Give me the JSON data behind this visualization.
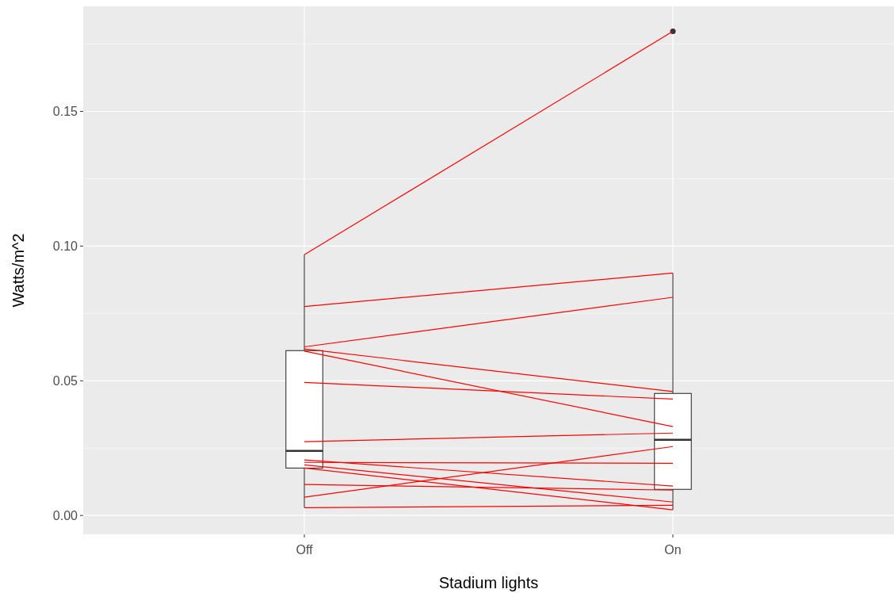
{
  "chart_data": {
    "type": "box",
    "xlabel": "Stadium lights",
    "ylabel": "Watts/m^2",
    "categories": [
      "Off",
      "On"
    ],
    "ylim": [
      -0.007,
      0.189
    ],
    "yticks": [
      {
        "value": 0,
        "label": "0.00"
      },
      {
        "value": 0.05,
        "label": "0.05"
      },
      {
        "value": 0.1,
        "label": "0.10"
      },
      {
        "value": 0.15,
        "label": "0.15"
      }
    ],
    "grid": true,
    "marker": "none",
    "line_style": "solid",
    "boxes": [
      {
        "low": 0.0029,
        "q1": 0.0176,
        "median": 0.024,
        "q3": 0.0612,
        "high": 0.0968
      },
      {
        "low": 0.0021,
        "q1": 0.0097,
        "median": 0.0281,
        "q3": 0.0453,
        "high": 0.09,
        "outliers": [
          0.1797
        ]
      }
    ],
    "series": [
      {
        "type": "line",
        "color": "#ff0000",
        "values": [
          0.0968,
          0.1797
        ]
      },
      {
        "type": "line",
        "color": "#ff0000",
        "values": [
          0.0776,
          0.09
        ]
      },
      {
        "type": "line",
        "color": "#ff0000",
        "values": [
          0.0626,
          0.081
        ]
      },
      {
        "type": "line",
        "color": "#ff0000",
        "values": [
          0.0618,
          0.046
        ]
      },
      {
        "type": "line",
        "color": "#ff0000",
        "values": [
          0.061,
          0.033
        ]
      },
      {
        "type": "line",
        "color": "#ff0000",
        "values": [
          0.0494,
          0.0432
        ]
      },
      {
        "type": "line",
        "color": "#ff0000",
        "values": [
          0.0274,
          0.0306
        ]
      },
      {
        "type": "line",
        "color": "#ff0000",
        "values": [
          0.0068,
          0.0256
        ]
      },
      {
        "type": "line",
        "color": "#ff0000",
        "values": [
          0.0197,
          0.0194
        ]
      },
      {
        "type": "line",
        "color": "#ff0000",
        "values": [
          0.0206,
          0.0109
        ]
      },
      {
        "type": "line",
        "color": "#ff0000",
        "values": [
          0.0188,
          0.005
        ]
      },
      {
        "type": "line",
        "color": "#ff0000",
        "values": [
          0.0176,
          0.0021
        ]
      },
      {
        "type": "line",
        "color": "#ff0000",
        "values": [
          0.0115,
          0.0094
        ]
      },
      {
        "type": "line",
        "color": "#ff0000",
        "values": [
          0.0029,
          0.0038
        ]
      }
    ]
  }
}
